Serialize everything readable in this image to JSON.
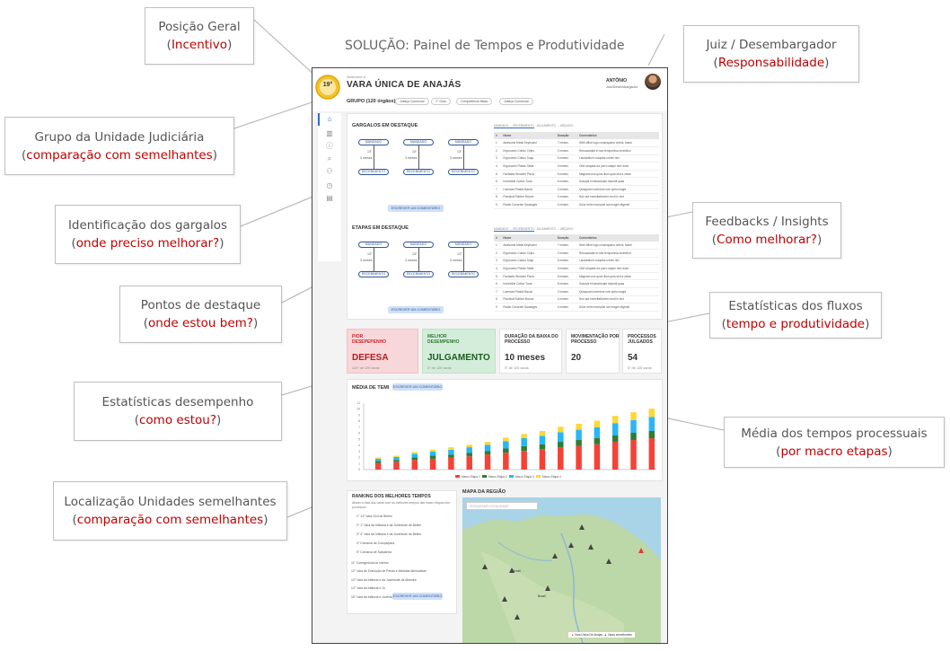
{
  "header": {
    "title": "SOLUÇÃO: Painel de Tempos e  Produtividade"
  },
  "annotations": [
    {
      "id": "posicao",
      "label": "Posição Geral",
      "highlight": "Incentivo"
    },
    {
      "id": "juiz",
      "label": "Juiz / Desembargador",
      "highlight": "Responsabilidade"
    },
    {
      "id": "grupo",
      "label": "Grupo da Unidade Judiciária",
      "highlight": "comparação com semelhantes"
    },
    {
      "id": "gargalos",
      "label": "Identificação dos gargalos",
      "highlight": "onde preciso melhorar?"
    },
    {
      "id": "feedbacks",
      "label": "Feedbacks / Insights",
      "highlight": "Como melhorar?"
    },
    {
      "id": "destaque",
      "label": "Pontos de destaque",
      "highlight": "onde estou bem?"
    },
    {
      "id": "fluxos",
      "label": "Estatísticas dos fluxos",
      "highlight": "tempo e produtividade"
    },
    {
      "id": "desempenho",
      "label": "Estatísticas desempenho",
      "highlight": "como estou?"
    },
    {
      "id": "media",
      "label": "Média dos tempos processuais",
      "highlight": "por macro etapas"
    },
    {
      "id": "localizacao",
      "label": "Localização Unidades semelhantes",
      "highlight": "comparação com semelhantes"
    }
  ],
  "mock": {
    "medal_rank": "19°",
    "breadcrumb": "Selecione a",
    "unit_title": "VARA ÚNICA DE ANAJÁS",
    "group_label": "GRUPO (120 órgãos)",
    "chips": [
      "Justiça Comercial",
      "1° Grau",
      "Competência Mista",
      "Justiça Comercial"
    ],
    "user_name": "ANTÔNIO",
    "user_role": "Juiz/Desembargador",
    "gargalos_title": "GARGALOS EM DESTAQUE",
    "etapas_title": "ETAPAS EM DESTAQUE",
    "flow": {
      "top": "MANDADO",
      "bottom": "RECEBIMENTO",
      "rank": "13°",
      "duration": "3 meses"
    },
    "comment_button": "ESCREVER UM COMENTÁRIO",
    "table_tabs": [
      "MANDADO → RECEBIMENTO",
      "JULGAMENTO → ARQUIVO"
    ],
    "table_headers": [
      "#",
      "Nome",
      "Duração",
      "Comentários"
    ],
    "table_rows": [
      [
        "1",
        "Awesome Metal Keyboard",
        "7 meses",
        "Well office logo consequatur omnis, fasori"
      ],
      [
        "2",
        "Ergonomic Cotton Chips",
        "2 meses",
        "Recusandae in sed temporibus invention"
      ],
      [
        "3",
        "Ergonomic Cotton Soap",
        "5 meses",
        "Laudantium voluptas omnis nec"
      ],
      [
        "4",
        "Ergonomic Plastic Table",
        "3 meses",
        "Odit voluptas ea porro saepe rem dolor"
      ],
      [
        "5",
        "Fantastic Wooden Pizza",
        "5 meses",
        "Magnam eos quos illum quia sed a velas"
      ],
      [
        "6",
        "Incredible Cotton Tuna",
        "6 meses",
        "Suscipit et laboriosam impedit quas"
      ],
      [
        "7",
        "Licensed Plastic Bacon",
        "2 meses",
        "Quisquam inventore iure optio magni"
      ],
      [
        "8",
        "Practical Rubber Mouse",
        "4 meses",
        "Non aut exercitationem modi in sint"
      ],
      [
        "9",
        "Rustic Concrete Sausages",
        "4 meses",
        "Dolor enim excepturi aut magni eligendi"
      ]
    ],
    "kpis": [
      {
        "label": "PIOR DESEPEPENHO",
        "value": "DEFESA",
        "sub": "119° de 120 varas"
      },
      {
        "label": "MELHOR DESEMPENHO",
        "value": "JULGAMENTO",
        "sub": "3° de 120 varas"
      },
      {
        "label": "DURAÇÃO DA BAIXA DO PROCESSO",
        "value": "10 meses",
        "sub": "5° de 120 varas"
      },
      {
        "label": "MOVIMENTAÇÃO POR PROCESSO",
        "value": "20",
        "sub": ""
      },
      {
        "label": "PROCESSOS JULGADOS",
        "value": "54",
        "sub": "5° de 120 varas"
      }
    ],
    "chart_title": "MÉDIA DE TEMI",
    "ranking_title": "RANKING DOS MELHORES TEMPOS",
    "ranking_desc": "Abaixo a lista das varas com os melhores tempos das macro etapas dos processos",
    "ranking_items": [
      "1° 13° Vara Civil de Belém",
      "2° 1° Vara da Infância e da Juventude de Belém",
      "3° 4° Vara da Infância e da Juventude de Belém",
      "4° Comarca de Curuçá/pará",
      "5° Comarca de Salvaterra",
      "11° Corregedoria do Interior",
      "12° Vara de Execução de Penas e Medidas Alternativas",
      "13° Vara da Infância e da Juventude de Altamira",
      "14° Vara da Infância e Ju",
      "15° Vara da Infância e Juventude Distrital de Icoaraci"
    ],
    "map_title": "MAPA DA REGIÃO",
    "map_search_placeholder": "PESQUISAR LOCALIDADE",
    "map_legend": [
      "Vara Única De Anajas",
      "Varas semelhantes"
    ],
    "map_cities": [
      "Brasil",
      "Brasil"
    ]
  },
  "chart_data": {
    "type": "bar",
    "stacked": true,
    "categories": [
      "1",
      "2",
      "3",
      "4",
      "5",
      "6",
      "7",
      "8",
      "9",
      "10",
      "11",
      "12",
      "13",
      "14",
      "15",
      "16"
    ],
    "series": [
      {
        "name": "Macro Etapa 1",
        "color": "#f44336",
        "values": [
          1.1,
          1.3,
          1.6,
          1.8,
          2.0,
          2.2,
          2.5,
          2.8,
          3.1,
          3.4,
          3.7,
          3.9,
          4.2,
          4.6,
          4.9,
          5.2
        ]
      },
      {
        "name": "Macro Etapa 2",
        "color": "#2e7d32",
        "values": [
          0.3,
          0.3,
          0.4,
          0.5,
          0.5,
          0.6,
          0.6,
          0.7,
          0.8,
          0.8,
          0.9,
          1.0,
          1.0,
          1.1,
          1.2,
          1.2
        ]
      },
      {
        "name": "Macro Etapa 3",
        "color": "#29b6f6",
        "values": [
          0.4,
          0.5,
          0.6,
          0.7,
          0.8,
          0.9,
          1.0,
          1.2,
          1.3,
          1.4,
          1.6,
          1.7,
          1.8,
          2.0,
          2.1,
          2.3
        ]
      },
      {
        "name": "Macro Etapa 4",
        "color": "#fdd835",
        "values": [
          0.2,
          0.2,
          0.3,
          0.3,
          0.4,
          0.4,
          0.5,
          0.6,
          0.7,
          0.8,
          0.9,
          1.0,
          1.1,
          1.2,
          1.3,
          1.4
        ]
      }
    ],
    "ylim": [
      0,
      11
    ],
    "yticks": [
      "0",
      "1",
      "2",
      "3",
      "4",
      "5",
      "6",
      "7",
      "8",
      "9",
      "10",
      "11"
    ]
  }
}
